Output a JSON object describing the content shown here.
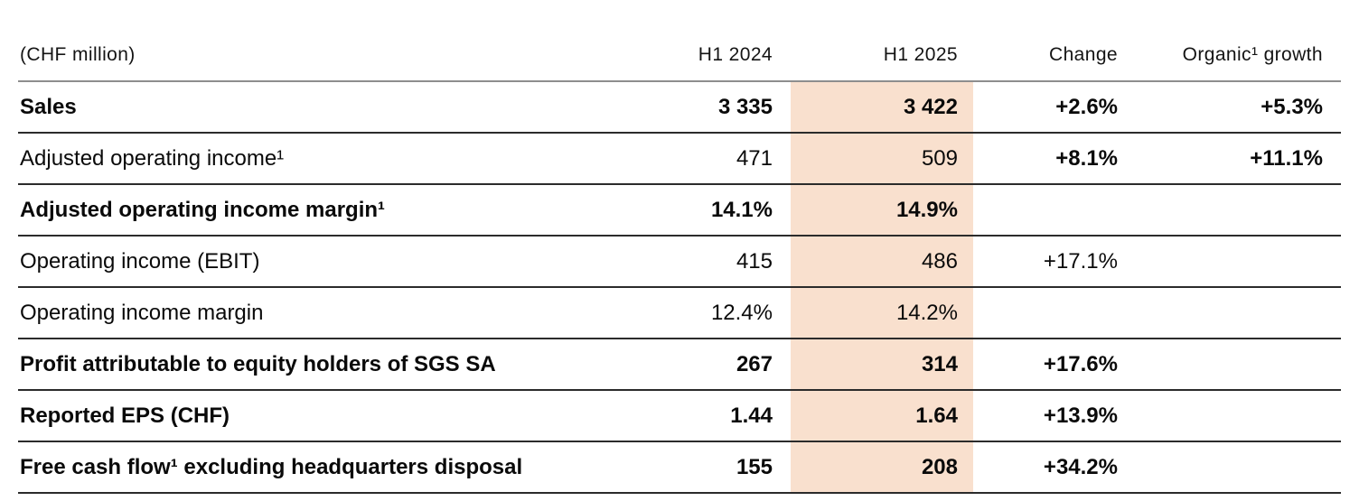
{
  "colors": {
    "highlight_column": "#f9e0ce",
    "header_rule": "#8e8e8e",
    "row_rule": "#2b2b2b",
    "text": "#0a0a0a"
  },
  "table": {
    "unit_label": "(CHF million)",
    "columns": {
      "h1_2024": "H1 2024",
      "h1_2025": "H1 2025",
      "change": "Change",
      "organic": "Organic¹ growth"
    },
    "rows": [
      {
        "label": "Sales",
        "h1_2024": "3 335",
        "h1_2025": "3 422",
        "change": "+2.6%",
        "organic": "+5.3%"
      },
      {
        "label": "Adjusted operating income¹",
        "h1_2024": "471",
        "h1_2025": "509",
        "change": "+8.1%",
        "organic": "+11.1%"
      },
      {
        "label": "Adjusted operating income margin¹",
        "h1_2024": "14.1%",
        "h1_2025": "14.9%",
        "change": "",
        "organic": ""
      },
      {
        "label": "Operating income (EBIT)",
        "h1_2024": "415",
        "h1_2025": "486",
        "change": "+17.1%",
        "organic": ""
      },
      {
        "label": "Operating income margin",
        "h1_2024": "12.4%",
        "h1_2025": "14.2%",
        "change": "",
        "organic": ""
      },
      {
        "label": "Profit attributable to equity holders of SGS SA",
        "h1_2024": "267",
        "h1_2025": "314",
        "change": "+17.6%",
        "organic": ""
      },
      {
        "label": "Reported EPS (CHF)",
        "h1_2024": "1.44",
        "h1_2025": "1.64",
        "change": "+13.9%",
        "organic": ""
      },
      {
        "label": "Free cash flow¹ excluding headquarters disposal",
        "h1_2024": "155",
        "h1_2025": "208",
        "change": "+34.2%",
        "organic": ""
      }
    ]
  }
}
